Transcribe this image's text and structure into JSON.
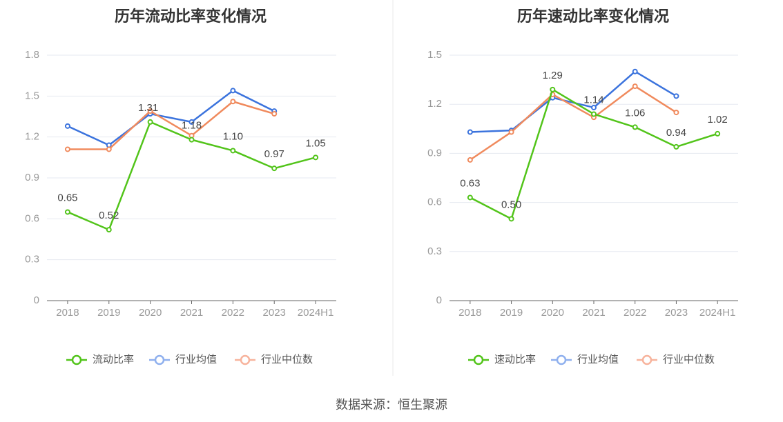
{
  "source_text": "数据来源：恒生聚源",
  "colors": {
    "main": "#52c41a",
    "avg": "#3b73dd",
    "median": "#f08a5d",
    "legend_avg": "#8fb0ee",
    "legend_median": "#f7b39c",
    "grid": "#e6e9f0",
    "axis": "#666666",
    "divider": "#e8e8e8"
  },
  "chart_data": [
    {
      "type": "line",
      "title": "历年流动比率变化情况",
      "categories": [
        "2018",
        "2019",
        "2020",
        "2021",
        "2022",
        "2023",
        "2024H1"
      ],
      "yticks": [
        "0",
        "0.3",
        "0.6",
        "0.9",
        "1.2",
        "1.5",
        "1.8"
      ],
      "ylim": [
        0,
        1.8
      ],
      "grid": true,
      "legend_position": "bottom",
      "series": [
        {
          "name": "流动比率",
          "role": "main",
          "values": [
            0.65,
            0.52,
            1.31,
            1.18,
            1.1,
            0.97,
            1.05
          ],
          "labels": [
            "0.65",
            "0.52",
            "1.31",
            "1.18",
            "1.10",
            "0.97",
            "1.05"
          ]
        },
        {
          "name": "行业均值",
          "role": "avg",
          "values": [
            1.28,
            1.14,
            1.37,
            1.31,
            1.54,
            1.39,
            null
          ]
        },
        {
          "name": "行业中位数",
          "role": "median",
          "values": [
            1.11,
            1.11,
            1.39,
            1.21,
            1.46,
            1.37,
            null
          ]
        }
      ]
    },
    {
      "type": "line",
      "title": "历年速动比率变化情况",
      "categories": [
        "2018",
        "2019",
        "2020",
        "2021",
        "2022",
        "2023",
        "2024H1"
      ],
      "yticks": [
        "0",
        "0.3",
        "0.6",
        "0.9",
        "1.2",
        "1.5"
      ],
      "ylim": [
        0,
        1.5
      ],
      "grid": true,
      "legend_position": "bottom",
      "series": [
        {
          "name": "速动比率",
          "role": "main",
          "values": [
            0.63,
            0.5,
            1.29,
            1.14,
            1.06,
            0.94,
            1.02
          ],
          "labels": [
            "0.63",
            "0.50",
            "1.29",
            "1.14",
            "1.06",
            "0.94",
            "1.02"
          ]
        },
        {
          "name": "行业均值",
          "role": "avg",
          "values": [
            1.03,
            1.04,
            1.24,
            1.18,
            1.4,
            1.25,
            null
          ]
        },
        {
          "name": "行业中位数",
          "role": "median",
          "values": [
            0.86,
            1.03,
            1.26,
            1.12,
            1.31,
            1.15,
            null
          ]
        }
      ]
    }
  ]
}
